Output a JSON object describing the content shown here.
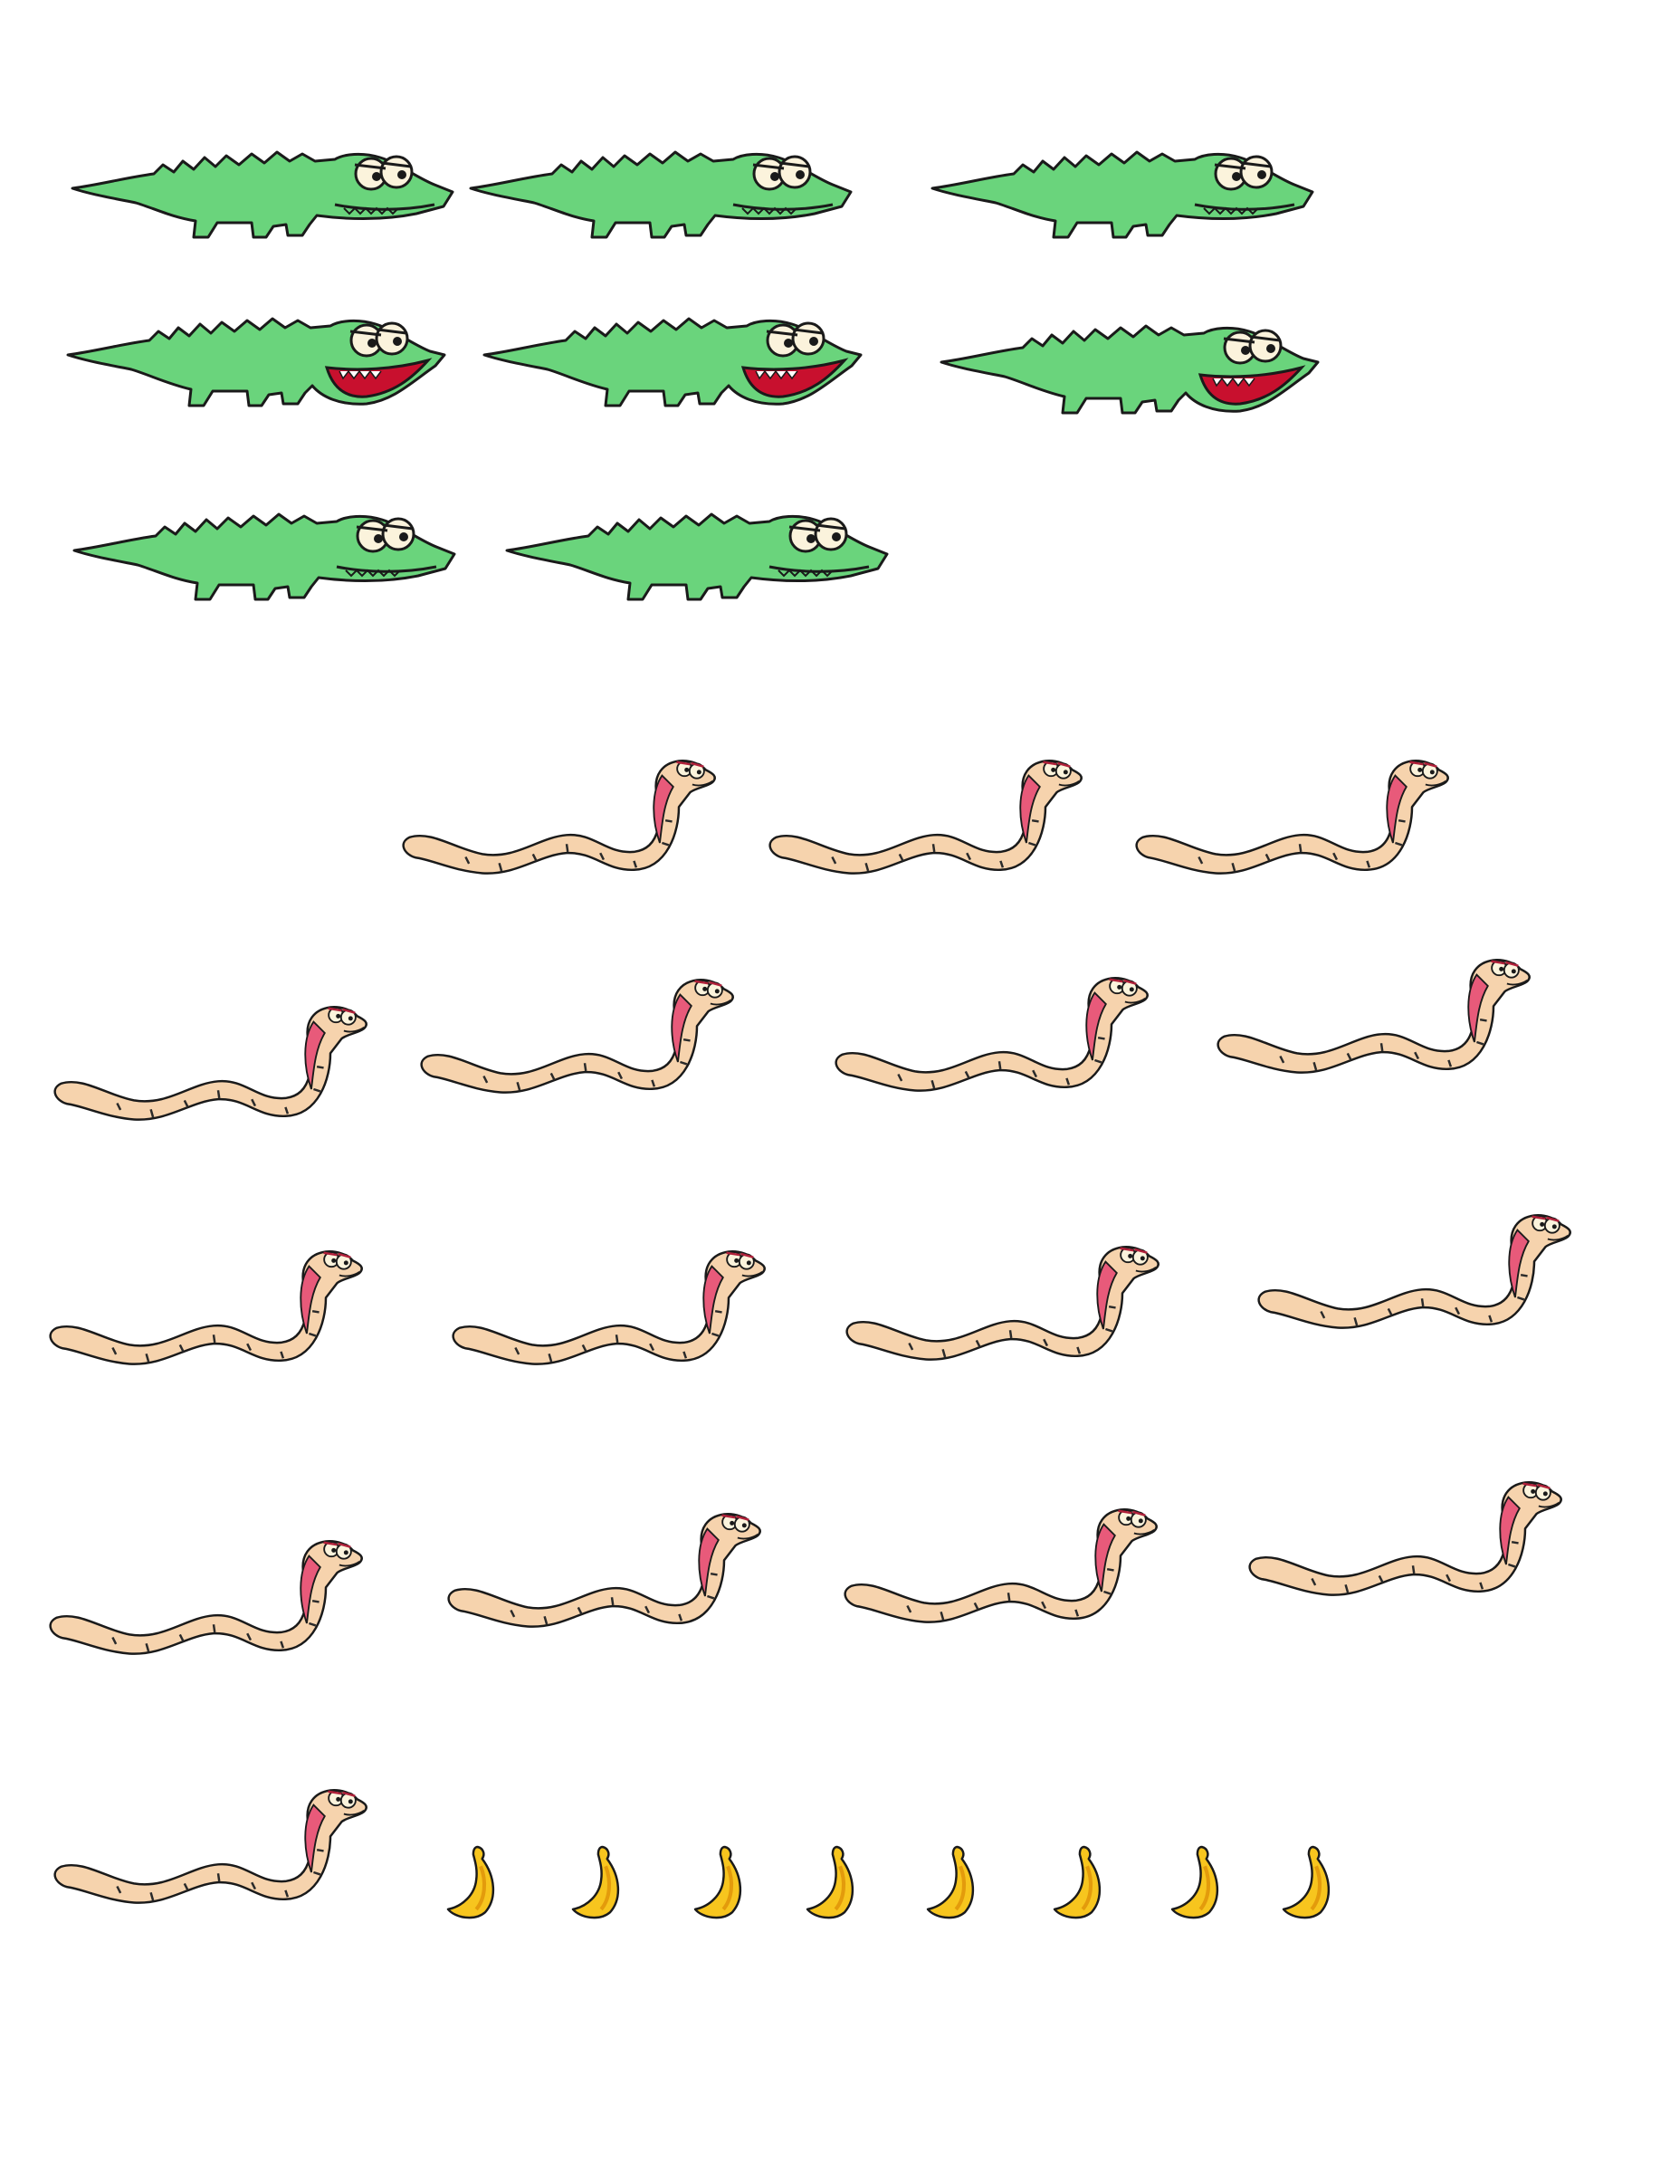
{
  "worksheet": {
    "crocodiles": [
      {
        "mouth": "closed"
      },
      {
        "mouth": "closed"
      },
      {
        "mouth": "closed"
      },
      {
        "mouth": "open"
      },
      {
        "mouth": "open"
      },
      {
        "mouth": "open"
      },
      {
        "mouth": "closed"
      },
      {
        "mouth": "closed"
      }
    ],
    "snakes": [
      {},
      {},
      {},
      {},
      {},
      {},
      {},
      {},
      {},
      {},
      {},
      {},
      {},
      {},
      {},
      {}
    ],
    "bananas": [
      {},
      {},
      {},
      {},
      {},
      {},
      {},
      {}
    ],
    "colors": {
      "crocodile_body": "#6ad47c",
      "outline": "#1a1a1a",
      "crocodile_mouth_open": "#c8102e",
      "snake_body": "#f6d3ad",
      "snake_hood": "#e85a7a",
      "snake_stripe": "#2a2a2a",
      "banana": "#f7c51e",
      "banana_shade": "#e39b0c",
      "eye_white": "#fbf3dc"
    }
  }
}
